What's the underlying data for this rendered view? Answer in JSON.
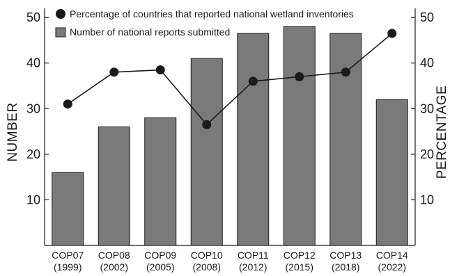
{
  "chart_data": {
    "type": "bar",
    "categories": [
      [
        "COP07",
        "(1999)"
      ],
      [
        "COP08",
        "(2002)"
      ],
      [
        "COP09",
        "(2005)"
      ],
      [
        "COP10",
        "(2008)"
      ],
      [
        "COP11",
        "(2012)"
      ],
      [
        "COP12",
        "(2015)"
      ],
      [
        "COP13",
        "(2018)"
      ],
      [
        "COP14",
        "(2022)"
      ]
    ],
    "series": [
      {
        "name": "Number of national reports submitted",
        "type": "bar",
        "axis": "left",
        "values": [
          16,
          26,
          28,
          41,
          46.5,
          48,
          46.5,
          32
        ]
      },
      {
        "name": "Percentage of countries that reported national wetland inventories",
        "type": "line",
        "axis": "right",
        "values": [
          31,
          38,
          38.5,
          26.5,
          36,
          37,
          38,
          46.5
        ]
      }
    ],
    "ylabel": "NUMBER",
    "y2label": "PERCENTAGE",
    "ylim": [
      0,
      52
    ],
    "y2lim": [
      0,
      52
    ],
    "yticks": [
      10,
      20,
      30,
      40,
      50
    ],
    "y2ticks": [
      10,
      20,
      30,
      40,
      50
    ],
    "legend_position": "top-left",
    "grid": false,
    "colors": {
      "bar_fill": "#7a7a7a",
      "bar_stroke": "#1a1a1a",
      "line": "#1a1a1a",
      "marker": "#1a1a1a",
      "axis": "#1a1a1a"
    }
  }
}
